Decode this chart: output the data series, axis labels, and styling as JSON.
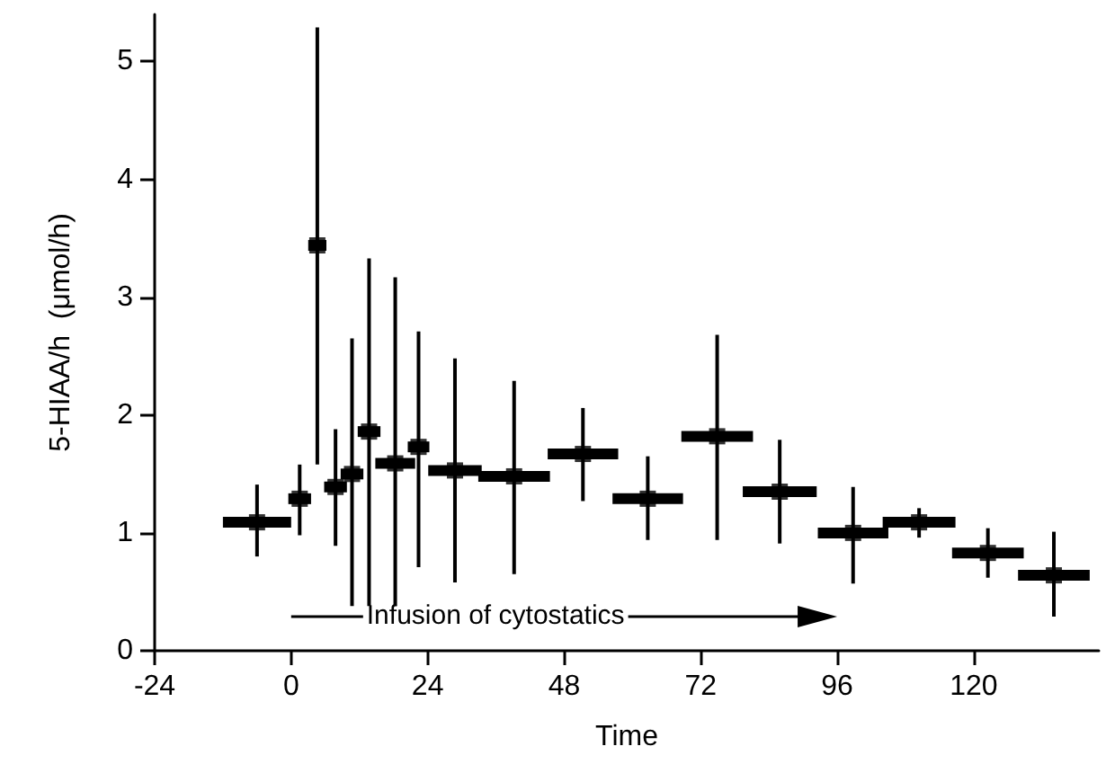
{
  "chart_data": {
    "type": "scatter",
    "xlabel": "Time",
    "ylabel": "5-HIAA/h  (μmol/h)",
    "annotations": [
      "Infusion of cytostatics"
    ],
    "xlim": [
      -24,
      142
    ],
    "xticks": [
      -24,
      0,
      24,
      48,
      72,
      96,
      120
    ],
    "ylim": [
      0,
      5.4
    ],
    "yticks": [
      0,
      1,
      2,
      3,
      4,
      5
    ],
    "grid": false,
    "marker": "square",
    "series": [
      {
        "color": "#000000",
        "x": [
          -6,
          1.5,
          4.6,
          7.8,
          10.7,
          13.7,
          18.3,
          22.4,
          28.8,
          39.2,
          51.3,
          62.7,
          74.9,
          85.9,
          98.8,
          110.4,
          122.5,
          134.1
        ],
        "values": [
          1.09,
          1.29,
          3.44,
          1.39,
          1.5,
          1.86,
          1.59,
          1.73,
          1.53,
          1.48,
          1.67,
          1.29,
          1.82,
          1.35,
          1.0,
          1.09,
          0.83,
          0.64
        ],
        "xerrors": [
          6,
          2,
          1.6,
          2,
          2,
          2,
          3.5,
          1.9,
          4.7,
          6.3,
          6.2,
          6.2,
          6.3,
          6.5,
          6.2,
          6.4,
          6.3,
          6.3
        ],
        "errors": [
          [
            0.8,
            1.41
          ],
          [
            0.98,
            1.58
          ],
          [
            1.58,
            5.29
          ],
          [
            0.89,
            1.88
          ],
          [
            0.38,
            2.65
          ],
          [
            0.38,
            3.33
          ],
          [
            0.38,
            3.17
          ],
          [
            0.71,
            2.71
          ],
          [
            0.58,
            2.48
          ],
          [
            0.65,
            2.29
          ],
          [
            1.27,
            2.06
          ],
          [
            0.94,
            1.65
          ],
          [
            0.94,
            2.68
          ],
          [
            0.91,
            1.79
          ],
          [
            0.57,
            1.39
          ],
          [
            0.96,
            1.21
          ],
          [
            0.62,
            1.04
          ],
          [
            0.29,
            1.01
          ]
        ]
      }
    ]
  }
}
